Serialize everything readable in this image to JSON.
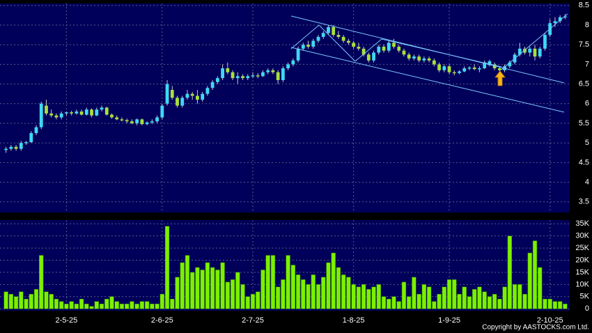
{
  "chart_data": [
    {
      "type": "candlestick",
      "categories": [
        null,
        null,
        null,
        null,
        null,
        null,
        null,
        null,
        null,
        null,
        null,
        null,
        "2-5-25",
        null,
        null,
        null,
        null,
        null,
        null,
        null,
        null,
        null,
        null,
        null,
        null,
        null,
        null,
        null,
        null,
        null,
        null,
        "2-6-25",
        null,
        null,
        null,
        null,
        null,
        null,
        null,
        null,
        null,
        null,
        null,
        null,
        null,
        null,
        null,
        null,
        null,
        "2-7-25",
        null,
        null,
        null,
        null,
        null,
        null,
        null,
        null,
        null,
        null,
        null,
        null,
        null,
        null,
        null,
        null,
        null,
        null,
        null,
        "1-8-25",
        null,
        null,
        null,
        null,
        null,
        null,
        null,
        null,
        null,
        null,
        null,
        null,
        null,
        null,
        null,
        null,
        null,
        null,
        "1-9-25",
        null,
        null,
        null,
        null,
        null,
        null,
        null,
        null,
        null,
        null,
        null,
        null,
        null,
        null,
        null,
        null,
        null,
        null,
        null,
        "2-10-25",
        null,
        null,
        null
      ],
      "ohlc": [
        [
          4.82,
          4.9,
          4.75,
          4.85
        ],
        [
          4.85,
          4.95,
          4.8,
          4.9
        ],
        [
          4.9,
          4.95,
          4.8,
          4.85
        ],
        [
          4.85,
          5.05,
          4.8,
          5.0
        ],
        [
          5.0,
          5.05,
          4.95,
          5.02
        ],
        [
          5.02,
          5.3,
          5.0,
          5.25
        ],
        [
          5.25,
          5.45,
          5.2,
          5.4
        ],
        [
          5.4,
          6.05,
          5.35,
          6.0
        ],
        [
          5.95,
          6.1,
          5.7,
          5.75
        ],
        [
          5.75,
          5.85,
          5.65,
          5.7
        ],
        [
          5.7,
          5.75,
          5.6,
          5.65
        ],
        [
          5.65,
          5.8,
          5.6,
          5.75
        ],
        [
          5.75,
          5.8,
          5.7,
          5.78
        ],
        [
          5.78,
          5.82,
          5.7,
          5.75
        ],
        [
          5.75,
          5.85,
          5.72,
          5.8
        ],
        [
          5.8,
          5.85,
          5.7,
          5.72
        ],
        [
          5.72,
          5.9,
          5.7,
          5.85
        ],
        [
          5.85,
          5.88,
          5.65,
          5.7
        ],
        [
          5.7,
          5.9,
          5.68,
          5.85
        ],
        [
          5.85,
          5.95,
          5.8,
          5.9
        ],
        [
          5.9,
          5.92,
          5.7,
          5.72
        ],
        [
          5.72,
          5.75,
          5.62,
          5.65
        ],
        [
          5.65,
          5.7,
          5.58,
          5.6
        ],
        [
          5.6,
          5.65,
          5.55,
          5.58
        ],
        [
          5.58,
          5.62,
          5.5,
          5.55
        ],
        [
          5.55,
          5.6,
          5.48,
          5.5
        ],
        [
          5.5,
          5.62,
          5.45,
          5.6
        ],
        [
          5.6,
          5.62,
          5.45,
          5.48
        ],
        [
          5.48,
          5.55,
          5.45,
          5.52
        ],
        [
          5.52,
          5.6,
          5.48,
          5.55
        ],
        [
          5.55,
          5.7,
          5.5,
          5.65
        ],
        [
          5.65,
          6.0,
          5.6,
          5.95
        ],
        [
          6.0,
          6.6,
          5.95,
          6.5
        ],
        [
          6.35,
          6.45,
          6.1,
          6.15
        ],
        [
          6.15,
          6.2,
          5.9,
          5.95
        ],
        [
          5.95,
          6.2,
          5.9,
          6.15
        ],
        [
          6.15,
          6.35,
          6.1,
          6.25
        ],
        [
          6.25,
          6.3,
          6.1,
          6.2
        ],
        [
          6.2,
          6.35,
          6.0,
          6.1
        ],
        [
          6.1,
          6.3,
          6.05,
          6.25
        ],
        [
          6.25,
          6.45,
          6.2,
          6.4
        ],
        [
          6.4,
          6.6,
          6.35,
          6.55
        ],
        [
          6.55,
          6.7,
          6.5,
          6.65
        ],
        [
          6.65,
          7.0,
          6.6,
          6.9
        ],
        [
          6.9,
          7.05,
          6.75,
          6.8
        ],
        [
          6.8,
          6.85,
          6.6,
          6.65
        ],
        [
          6.65,
          6.8,
          6.5,
          6.7
        ],
        [
          6.7,
          6.75,
          6.6,
          6.65
        ],
        [
          6.65,
          6.75,
          6.6,
          6.7
        ],
        [
          6.7,
          6.8,
          6.65,
          6.72
        ],
        [
          6.72,
          6.78,
          6.65,
          6.7
        ],
        [
          6.7,
          6.85,
          6.68,
          6.8
        ],
        [
          6.8,
          6.9,
          6.75,
          6.85
        ],
        [
          6.85,
          6.9,
          6.75,
          6.8
        ],
        [
          6.8,
          6.85,
          6.5,
          6.6
        ],
        [
          6.6,
          6.95,
          6.55,
          6.9
        ],
        [
          6.9,
          7.05,
          6.85,
          7.0
        ],
        [
          7.0,
          7.15,
          6.95,
          7.1
        ],
        [
          7.1,
          7.45,
          7.05,
          7.4
        ],
        [
          7.4,
          7.55,
          7.35,
          7.5
        ],
        [
          7.5,
          7.6,
          7.4,
          7.45
        ],
        [
          7.45,
          7.65,
          7.4,
          7.6
        ],
        [
          7.6,
          7.75,
          7.55,
          7.7
        ],
        [
          7.7,
          7.85,
          7.65,
          7.8
        ],
        [
          7.8,
          8.0,
          7.75,
          7.95
        ],
        [
          7.95,
          8.0,
          7.7,
          7.75
        ],
        [
          7.75,
          7.85,
          7.65,
          7.7
        ],
        [
          7.7,
          7.75,
          7.55,
          7.6
        ],
        [
          7.6,
          7.65,
          7.5,
          7.55
        ],
        [
          7.55,
          7.6,
          7.4,
          7.45
        ],
        [
          7.45,
          7.55,
          7.35,
          7.4
        ],
        [
          7.4,
          7.45,
          7.2,
          7.25
        ],
        [
          7.25,
          7.3,
          7.05,
          7.1
        ],
        [
          7.1,
          7.35,
          7.05,
          7.3
        ],
        [
          7.3,
          7.5,
          7.25,
          7.45
        ],
        [
          7.45,
          7.5,
          7.3,
          7.35
        ],
        [
          7.35,
          7.6,
          7.3,
          7.55
        ],
        [
          7.55,
          7.65,
          7.4,
          7.45
        ],
        [
          7.45,
          7.5,
          7.3,
          7.35
        ],
        [
          7.35,
          7.4,
          7.2,
          7.25
        ],
        [
          7.25,
          7.3,
          7.1,
          7.15
        ],
        [
          7.15,
          7.25,
          7.1,
          7.2
        ],
        [
          7.2,
          7.25,
          7.05,
          7.1
        ],
        [
          7.1,
          7.2,
          7.05,
          7.15
        ],
        [
          7.15,
          7.2,
          7.05,
          7.1
        ],
        [
          7.1,
          7.15,
          6.95,
          7.0
        ],
        [
          7.0,
          7.05,
          6.8,
          6.85
        ],
        [
          6.85,
          7.0,
          6.8,
          6.95
        ],
        [
          6.95,
          7.0,
          6.75,
          6.8
        ],
        [
          6.8,
          6.85,
          6.72,
          6.78
        ],
        [
          6.78,
          6.85,
          6.75,
          6.82
        ],
        [
          6.82,
          6.95,
          6.8,
          6.9
        ],
        [
          6.9,
          6.95,
          6.85,
          6.92
        ],
        [
          6.92,
          7.0,
          6.85,
          6.88
        ],
        [
          6.88,
          6.95,
          6.8,
          6.9
        ],
        [
          6.9,
          7.1,
          6.88,
          7.05
        ],
        [
          6.98,
          7.12,
          6.95,
          7.08
        ],
        [
          7.0,
          7.05,
          6.85,
          6.9
        ],
        [
          6.9,
          6.95,
          6.8,
          6.85
        ],
        [
          6.85,
          7.0,
          6.8,
          6.95
        ],
        [
          6.95,
          7.1,
          6.9,
          7.05
        ],
        [
          7.05,
          7.3,
          7.0,
          7.25
        ],
        [
          7.25,
          7.55,
          7.2,
          7.4
        ],
        [
          7.4,
          7.45,
          7.25,
          7.3
        ],
        [
          7.3,
          7.45,
          7.2,
          7.4
        ],
        [
          7.4,
          7.5,
          7.1,
          7.2
        ],
        [
          7.2,
          7.45,
          7.15,
          7.4
        ],
        [
          7.4,
          7.8,
          7.35,
          7.75
        ],
        [
          7.75,
          8.15,
          7.7,
          8.05
        ],
        [
          8.05,
          8.2,
          7.95,
          8.1
        ],
        [
          8.1,
          8.25,
          8.05,
          8.2
        ],
        [
          8.2,
          8.28,
          8.15,
          8.22
        ]
      ],
      "up_color": "#3fd8f5",
      "down_color": "#a8e03a",
      "ylim": [
        3.23,
        8.55
      ],
      "yticks": [
        3.5,
        4,
        4.5,
        5,
        5.5,
        6,
        6.5,
        7,
        7.5,
        8,
        8.5
      ],
      "grid": true
    },
    {
      "type": "bar",
      "values": [
        7000,
        6000,
        5000,
        7000,
        4000,
        6000,
        8000,
        22000,
        7000,
        6000,
        4000,
        3000,
        2000,
        3000,
        2000,
        4000,
        2000,
        1000,
        3000,
        2000,
        4000,
        5000,
        3000,
        2000,
        2000,
        3000,
        2000,
        3000,
        3000,
        2000,
        2000,
        6000,
        34000,
        4000,
        13000,
        19000,
        22000,
        15000,
        17000,
        16000,
        19000,
        17000,
        16000,
        19000,
        11000,
        12000,
        15000,
        10000,
        5000,
        6000,
        7000,
        16000,
        22000,
        22000,
        9000,
        12000,
        22000,
        18000,
        14000,
        12000,
        10000,
        14000,
        10000,
        13000,
        19000,
        23000,
        17000,
        14000,
        13000,
        10000,
        9000,
        10000,
        8000,
        9000,
        10000,
        5000,
        4000,
        5000,
        3000,
        11000,
        5000,
        13000,
        6000,
        10000,
        9000,
        3000,
        6000,
        9000,
        12000,
        12000,
        6000,
        9000,
        5000,
        8000,
        9000,
        7000,
        5000,
        6000,
        4000,
        9000,
        30000,
        10000,
        10000,
        6000,
        23000,
        28000,
        17000,
        4000,
        4000,
        3000,
        3000,
        2000
      ],
      "color": "#7cf000",
      "ylim": [
        -800,
        36500
      ],
      "yticks": [
        0,
        {
          "value": 5000,
          "label": "5K"
        },
        {
          "value": 10000,
          "label": "10K"
        },
        {
          "value": 15000,
          "label": "15K"
        },
        {
          "value": 20000,
          "label": "20K"
        },
        {
          "value": 25000,
          "label": "25K"
        },
        {
          "value": 30000,
          "label": "30K"
        },
        {
          "value": 35000,
          "label": "35K"
        }
      ],
      "grid": true
    }
  ],
  "source": "Copyright by AASTOCKS.com Ltd."
}
